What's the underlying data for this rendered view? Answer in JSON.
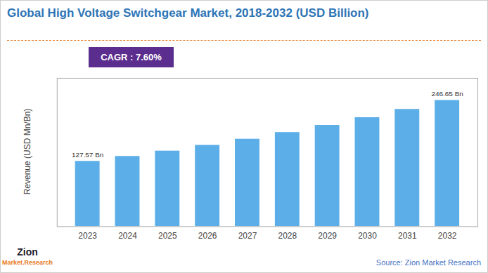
{
  "chart_data": {
    "type": "bar",
    "title": "Global High Voltage Switchgear Market, 2018-2032 (USD Billion)",
    "ylabel": "Revenue (USD Mn/Bn)",
    "categories": [
      "2023",
      "2024",
      "2025",
      "2026",
      "2027",
      "2028",
      "2029",
      "2030",
      "2031",
      "2032"
    ],
    "values": [
      127.57,
      137.27,
      147.71,
      158.93,
      171.01,
      184.01,
      197.99,
      213.03,
      229.22,
      246.65
    ],
    "value_labels": [
      "127.57 Bn",
      null,
      null,
      null,
      null,
      null,
      null,
      null,
      null,
      "246.65 Bn"
    ],
    "data_labels": true,
    "color": "#5BAEE8",
    "ylim": [
      0,
      290
    ],
    "yticks": [],
    "tick_labels": "x",
    "grid": false,
    "annotations": [
      "CAGR : 7.60%",
      "Source: Zion Market Research",
      "Zion",
      "Market.Research"
    ]
  }
}
